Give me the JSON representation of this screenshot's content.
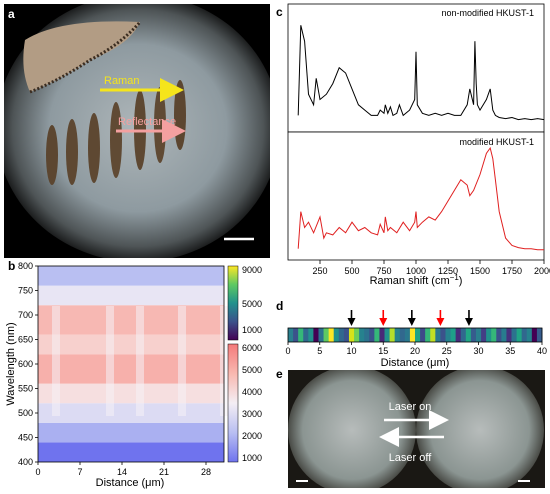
{
  "panels": {
    "a": {
      "label": "a",
      "arrow_raman": "Raman",
      "arrow_reflectance": "Reflectance",
      "colors": {
        "raman": "#f5e51b",
        "reflectance": "#f4a0a0"
      }
    },
    "b": {
      "label": "b",
      "xlabel": "Distance (μm)",
      "ylabel": "Wavelength (nm)",
      "xticks": [
        "0",
        "7",
        "14",
        "21",
        "28"
      ],
      "yticks": [
        "400",
        "450",
        "500",
        "550",
        "600",
        "650",
        "700",
        "750",
        "800"
      ],
      "colorbar_top_ticks": [
        "9000",
        "5000",
        "1000"
      ],
      "colorbar_bottom_ticks": [
        "6000",
        "5000",
        "4000",
        "3000",
        "2000",
        "1000"
      ]
    },
    "c": {
      "label": "c",
      "top_legend": "non-modified HKUST-1",
      "bottom_legend": "modified HKUST-1",
      "xlabel_main": "Raman shift (cm",
      "xlabel_sup": "−1",
      "xlabel_end": ")",
      "xticks": [
        "250",
        "500",
        "750",
        "1000",
        "1250",
        "1500",
        "1750",
        "2000"
      ],
      "colors": {
        "top": "#000000",
        "bottom": "#e02020"
      }
    },
    "d": {
      "label": "d",
      "xlabel": "Distance (μm)",
      "xticks": [
        "0",
        "5",
        "10",
        "15",
        "20",
        "25",
        "30",
        "35",
        "40"
      ],
      "arrow_colors": [
        "#000000",
        "#ff0000",
        "#000000",
        "#ff0000",
        "#000000"
      ]
    },
    "e": {
      "label": "e",
      "laser_on": "Laser on",
      "laser_off": "Laser off"
    }
  },
  "chart_data": [
    {
      "type": "line",
      "panel": "c",
      "x_range": [
        0,
        2000
      ],
      "series": [
        {
          "name": "non-modified HKUST-1",
          "x": [
            80,
            100,
            130,
            160,
            200,
            220,
            250,
            300,
            350,
            400,
            450,
            500,
            550,
            600,
            650,
            700,
            720,
            750,
            760,
            780,
            800,
            820,
            850,
            870,
            900,
            950,
            990,
            1000,
            1010,
            1050,
            1100,
            1150,
            1200,
            1250,
            1300,
            1350,
            1400,
            1420,
            1450,
            1460,
            1470,
            1480,
            1500,
            1550,
            1580,
            1600,
            1620,
            1650,
            1700,
            1750,
            1800,
            1850,
            1900,
            1950,
            2000
          ],
          "y": [
            0.1,
            0.95,
            0.8,
            0.3,
            0.2,
            0.45,
            0.25,
            0.3,
            0.4,
            0.55,
            0.5,
            0.35,
            0.2,
            0.15,
            0.1,
            0.1,
            0.15,
            0.12,
            0.2,
            0.12,
            0.18,
            0.1,
            0.12,
            0.2,
            0.1,
            0.15,
            0.25,
            0.7,
            0.2,
            0.12,
            0.1,
            0.12,
            0.1,
            0.12,
            0.1,
            0.1,
            0.2,
            0.35,
            0.2,
            0.8,
            0.4,
            0.2,
            0.15,
            0.25,
            0.35,
            0.15,
            0.1,
            0.08,
            0.07,
            0.08,
            0.06,
            0.07,
            0.06,
            0.07,
            0.06
          ]
        },
        {
          "name": "modified HKUST-1",
          "x": [
            80,
            100,
            130,
            160,
            200,
            250,
            280,
            300,
            350,
            400,
            450,
            500,
            550,
            600,
            650,
            700,
            720,
            750,
            760,
            780,
            800,
            850,
            900,
            950,
            990,
            1000,
            1010,
            1050,
            1100,
            1150,
            1200,
            1250,
            1300,
            1350,
            1400,
            1420,
            1450,
            1500,
            1550,
            1580,
            1600,
            1620,
            1650,
            1700,
            1750,
            1800,
            1850,
            1900,
            1950,
            2000
          ],
          "y": [
            0.05,
            0.4,
            0.25,
            0.3,
            0.2,
            0.35,
            0.15,
            0.2,
            0.18,
            0.25,
            0.2,
            0.3,
            0.22,
            0.25,
            0.2,
            0.18,
            0.28,
            0.2,
            0.35,
            0.22,
            0.25,
            0.2,
            0.3,
            0.22,
            0.3,
            0.4,
            0.25,
            0.3,
            0.35,
            0.32,
            0.4,
            0.5,
            0.6,
            0.7,
            0.65,
            0.55,
            0.6,
            0.75,
            0.95,
            1.0,
            0.9,
            0.7,
            0.4,
            0.15,
            0.08,
            0.06,
            0.05,
            0.05,
            0.04,
            0.04
          ]
        }
      ]
    },
    {
      "type": "heatmap",
      "panel": "b",
      "x_range": [
        0,
        31
      ],
      "y_range": [
        400,
        800
      ],
      "bands": [
        {
          "from": 400,
          "to": 440,
          "level": 1000
        },
        {
          "from": 440,
          "to": 480,
          "level": 1800
        },
        {
          "from": 480,
          "to": 520,
          "level": 2600
        },
        {
          "from": 520,
          "to": 560,
          "level": 3400
        },
        {
          "from": 560,
          "to": 620,
          "level": 4600
        },
        {
          "from": 620,
          "to": 660,
          "level": 3800
        },
        {
          "from": 660,
          "to": 720,
          "level": 4400
        },
        {
          "from": 720,
          "to": 760,
          "level": 2800
        },
        {
          "from": 760,
          "to": 800,
          "level": 2000
        }
      ]
    },
    {
      "type": "heatmap",
      "panel": "d",
      "x_range": [
        0,
        40
      ],
      "arrow_x": [
        10,
        15,
        19.5,
        24,
        28.5
      ],
      "cell_colors": [
        "#2a7f8e",
        "#3b528b",
        "#35b779",
        "#31688e",
        "#21918c",
        "#440154",
        "#2c728e",
        "#5ec962",
        "#fde725",
        "#21918c",
        "#31688e",
        "#3b528b",
        "#d8e219",
        "#6ece58",
        "#26828e",
        "#2c728e",
        "#3b528b",
        "#35b779",
        "#482878",
        "#21918c",
        "#b5de2b",
        "#26828e",
        "#31688e",
        "#2a788e",
        "#fde725",
        "#20a386",
        "#3e4989",
        "#35b779",
        "#c2df23",
        "#2a788e",
        "#3b528b",
        "#26828e",
        "#1f9e89",
        "#472d7b",
        "#31688e",
        "#22a785",
        "#365c8d",
        "#2a7f8e",
        "#433e85",
        "#21918c",
        "#35b779",
        "#3b528b",
        "#287c8e",
        "#46327e",
        "#2c728e",
        "#20a486",
        "#31688e",
        "#26828e",
        "#440154",
        "#365c8d"
      ]
    }
  ]
}
